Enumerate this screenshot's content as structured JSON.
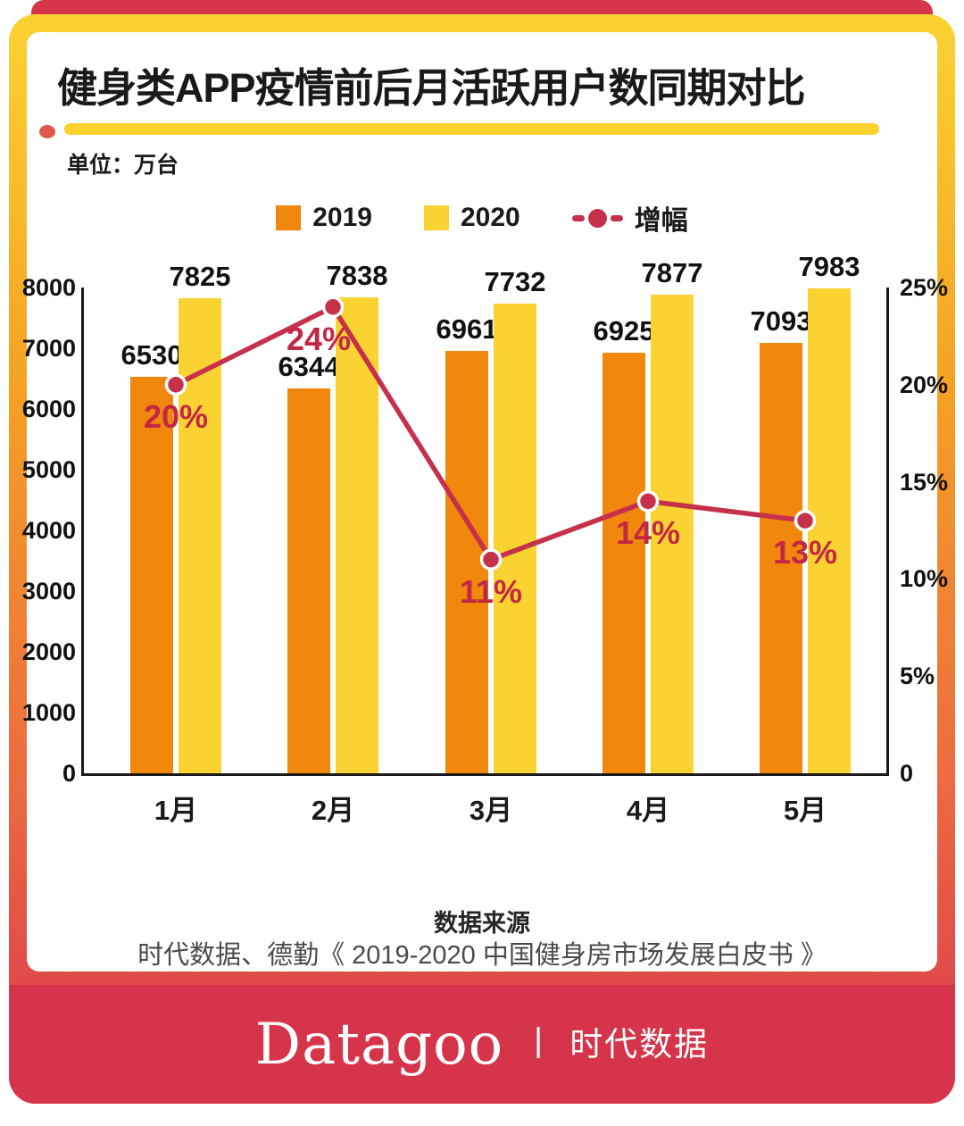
{
  "header": {
    "title": "健身类APP疫情前后月活跃用户数同期对比",
    "unit_label": "单位：万台"
  },
  "legend": [
    {
      "label": "2019",
      "swatch": "orange-square",
      "color": "#F1870D"
    },
    {
      "label": "2020",
      "swatch": "yellow-square",
      "color": "#FAD231"
    },
    {
      "label": "增幅",
      "swatch": "red-dash-dot-line",
      "color": "#C5304A"
    }
  ],
  "chart_data": {
    "type": "bar",
    "subtype": "grouped bars with growth line on secondary axis",
    "title": "健身类APP疫情前后月活跃用户数同期对比",
    "unit": "万台",
    "categories": [
      "1月",
      "2月",
      "3月",
      "4月",
      "5月"
    ],
    "series": [
      {
        "name": "2019",
        "type": "bar",
        "color": "#F1870D",
        "values": [
          6530,
          6344,
          6961,
          6925,
          7093
        ]
      },
      {
        "name": "2020",
        "type": "bar",
        "color": "#FAD231",
        "values": [
          7825,
          7838,
          7732,
          7877,
          7983
        ]
      },
      {
        "name": "增幅",
        "type": "line",
        "color": "#C5304A",
        "values_pct": [
          20,
          24,
          11,
          14,
          13
        ],
        "labels": [
          "20%",
          "24%",
          "11%",
          "14%",
          "13%"
        ]
      }
    ],
    "left_axis": {
      "min": 0,
      "max": 8000,
      "tick_labels": [
        "0",
        "1000",
        "2000",
        "3000",
        "4000",
        "5000",
        "6000",
        "7000",
        "8000"
      ]
    },
    "right_axis": {
      "min": 0,
      "max": 25,
      "ticks": [
        {
          "value": 25,
          "label": "25%"
        },
        {
          "value": 20,
          "label": "20%"
        },
        {
          "value": 15,
          "label": "15%"
        },
        {
          "value": 10,
          "label": "10%"
        },
        {
          "value": 5,
          "label": "5%"
        },
        {
          "value": 0,
          "label": "0"
        }
      ]
    },
    "grid": "off",
    "legend_position": "top-center"
  },
  "source": {
    "title": "数据来源",
    "text": "时代数据、德勤《 2019-2020 中国健身房市场发展白皮书 》"
  },
  "footer": {
    "brand": "Datagoo",
    "separator": "丨",
    "chinese_name": "时代数据"
  },
  "colors": {
    "bar_2019_orange": "#F1870D",
    "bar_2020_yellow": "#FAD231",
    "growth_line_red": "#C5304A",
    "growth_text_red": "#C22843",
    "footer_red": "#D5344A",
    "divider_yellow": "#FBD12E",
    "divider_dot_red": "#E0584A",
    "border_gradient": [
      "#FBD232",
      "#F4A024",
      "#EC6B40",
      "#DE4549",
      "#D9394A"
    ],
    "axis_black": "#1A1A1A",
    "source_gray": "#4A4A4A"
  }
}
